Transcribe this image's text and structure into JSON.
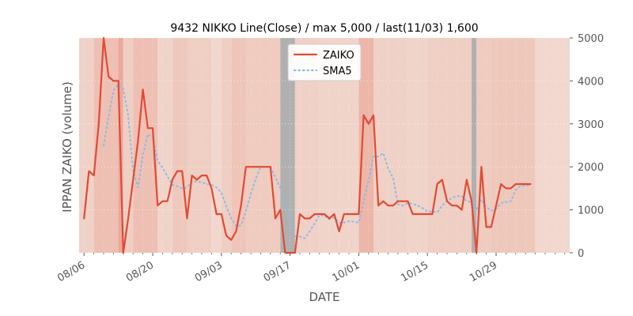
{
  "chart_data": {
    "type": "line",
    "title": "9432 NIKKO Line(Close) / max 5,000 / last(11/03) 1,600",
    "xlabel": "DATE",
    "ylabel": "IPPAN ZAIKO (volume)",
    "ylim": [
      0,
      5000
    ],
    "y_ticks": [
      0,
      1000,
      2000,
      3000,
      4000,
      5000
    ],
    "y_tick_labels": [
      "0",
      "1000",
      "2000",
      "3000",
      "4000",
      "5000"
    ],
    "x_range_days": [
      -1,
      99
    ],
    "x_ticks": [
      {
        "day": 0,
        "label": "08/06"
      },
      {
        "day": 14,
        "label": "08/20"
      },
      {
        "day": 28,
        "label": "09/03"
      },
      {
        "day": 42,
        "label": "09/17"
      },
      {
        "day": 56,
        "label": "10/01"
      },
      {
        "day": 70,
        "label": "10/15"
      },
      {
        "day": 84,
        "label": "10/29"
      }
    ],
    "legend": {
      "position": "top-center",
      "entries": [
        "ZAIKO",
        "SMA5"
      ]
    },
    "colors": {
      "zaiko": "#E24A33",
      "sma5": "#8EBAE5",
      "axis_bg": "#E5E5E5",
      "text": "#555555",
      "title": "#000000"
    },
    "series": [
      {
        "name": "ZAIKO",
        "style": "solid",
        "x": [
          0,
          1,
          2,
          3,
          4,
          5,
          6,
          7,
          8,
          9,
          10,
          11,
          12,
          13,
          14,
          15,
          16,
          17,
          18,
          19,
          20,
          21,
          22,
          23,
          24,
          25,
          26,
          27,
          28,
          29,
          30,
          31,
          32,
          33,
          34,
          35,
          36,
          37,
          38,
          39,
          40,
          41,
          42,
          43,
          44,
          45,
          46,
          47,
          48,
          49,
          50,
          51,
          52,
          53,
          54,
          55,
          56,
          57,
          58,
          59,
          60,
          61,
          62,
          63,
          64,
          65,
          66,
          67,
          68,
          69,
          70,
          71,
          72,
          73,
          74,
          75,
          76,
          77,
          78,
          79,
          80,
          81,
          82,
          83,
          84,
          85,
          86,
          87,
          88,
          89,
          90,
          91
        ],
        "values": [
          800,
          1900,
          1800,
          3000,
          5000,
          4100,
          4000,
          4000,
          0,
          800,
          1700,
          2600,
          3800,
          2900,
          2900,
          1100,
          1200,
          1200,
          1700,
          1900,
          1900,
          800,
          1800,
          1700,
          1800,
          1800,
          1500,
          900,
          900,
          400,
          300,
          500,
          1100,
          2000,
          2000,
          2000,
          2000,
          2000,
          2000,
          800,
          1000,
          0,
          0,
          0,
          900,
          800,
          800,
          900,
          900,
          900,
          800,
          900,
          500,
          900,
          900,
          900,
          900,
          3200,
          3000,
          3200,
          1100,
          1200,
          1100,
          1100,
          1200,
          1200,
          1200,
          900,
          900,
          900,
          900,
          900,
          1600,
          1700,
          1200,
          1100,
          1100,
          1000,
          1700,
          1200,
          0,
          2000,
          600,
          600,
          1100,
          1600,
          1500,
          1500,
          1600,
          1600,
          1600,
          1600
        ]
      },
      {
        "name": "SMA5",
        "style": "dotted",
        "x": [
          4,
          5,
          6,
          7,
          8,
          9,
          10,
          11,
          12,
          13,
          14,
          15,
          16,
          17,
          18,
          19,
          20,
          21,
          22,
          23,
          24,
          25,
          26,
          27,
          28,
          29,
          30,
          31,
          32,
          33,
          34,
          35,
          36,
          37,
          38,
          39,
          40,
          41,
          42,
          43,
          44,
          45,
          46,
          47,
          48,
          49,
          50,
          51,
          52,
          53,
          54,
          55,
          56,
          57,
          58,
          59,
          60,
          61,
          62,
          63,
          64,
          65,
          66,
          67,
          68,
          69,
          70,
          71,
          72,
          73,
          74,
          75,
          76,
          77,
          78,
          79,
          80,
          81,
          82,
          83,
          84,
          85,
          86,
          87,
          88,
          89,
          90,
          91
        ],
        "values": [
          2500,
          3160,
          3780,
          3920,
          3820,
          3200,
          1920,
          1520,
          2280,
          2760,
          2680,
          2140,
          1980,
          1780,
          1580,
          1550,
          1500,
          1520,
          1660,
          1660,
          1640,
          1600,
          1580,
          1520,
          1400,
          1080,
          800,
          620,
          640,
          960,
          1380,
          1720,
          2000,
          2000,
          2000,
          1760,
          1520,
          1160,
          760,
          380,
          380,
          340,
          500,
          680,
          880,
          860,
          780,
          820,
          700,
          700,
          740,
          720,
          700,
          1200,
          1680,
          2240,
          2240,
          2320,
          1960,
          1740,
          1120,
          1100,
          1160,
          1140,
          1100,
          1040,
          960,
          960,
          940,
          1100,
          1200,
          1280,
          1320,
          1320,
          1200,
          1180,
          1000,
          1240,
          1060,
          980,
          1020,
          1160,
          1180,
          1200,
          1460,
          1560,
          1560,
          1580
        ]
      }
    ],
    "background_bands": [
      {
        "from": -1,
        "to": 2,
        "intensity": 0.25
      },
      {
        "from": 2,
        "to": 7,
        "intensity": 0.55
      },
      {
        "from": 7,
        "to": 8,
        "intensity": 0.9
      },
      {
        "from": 8,
        "to": 10,
        "intensity": 0.3
      },
      {
        "from": 10,
        "to": 15,
        "intensity": 0.55
      },
      {
        "from": 15,
        "to": 18,
        "intensity": 0.2
      },
      {
        "from": 18,
        "to": 21,
        "intensity": 0.4
      },
      {
        "from": 21,
        "to": 26,
        "intensity": 0.3
      },
      {
        "from": 26,
        "to": 28,
        "intensity": 0.15
      },
      {
        "from": 28,
        "to": 30,
        "intensity": 0.3
      },
      {
        "from": 30,
        "to": 33,
        "intensity": 0.45
      },
      {
        "from": 33,
        "to": 40,
        "intensity": 0.35
      },
      {
        "from": 40,
        "to": 43,
        "intensity": 1.0
      },
      {
        "from": 43,
        "to": 48,
        "intensity": 0.25
      },
      {
        "from": 48,
        "to": 56,
        "intensity": 0.2
      },
      {
        "from": 56,
        "to": 59,
        "intensity": 0.7
      },
      {
        "from": 59,
        "to": 66,
        "intensity": 0.25
      },
      {
        "from": 66,
        "to": 70,
        "intensity": 0.2
      },
      {
        "from": 70,
        "to": 74,
        "intensity": 0.3
      },
      {
        "from": 74,
        "to": 79,
        "intensity": 0.3
      },
      {
        "from": 79,
        "to": 80,
        "intensity": 1.0
      },
      {
        "from": 80,
        "to": 83,
        "intensity": 0.35
      },
      {
        "from": 83,
        "to": 92,
        "intensity": 0.4
      },
      {
        "from": 92,
        "to": 99,
        "intensity": 0.15
      }
    ]
  }
}
